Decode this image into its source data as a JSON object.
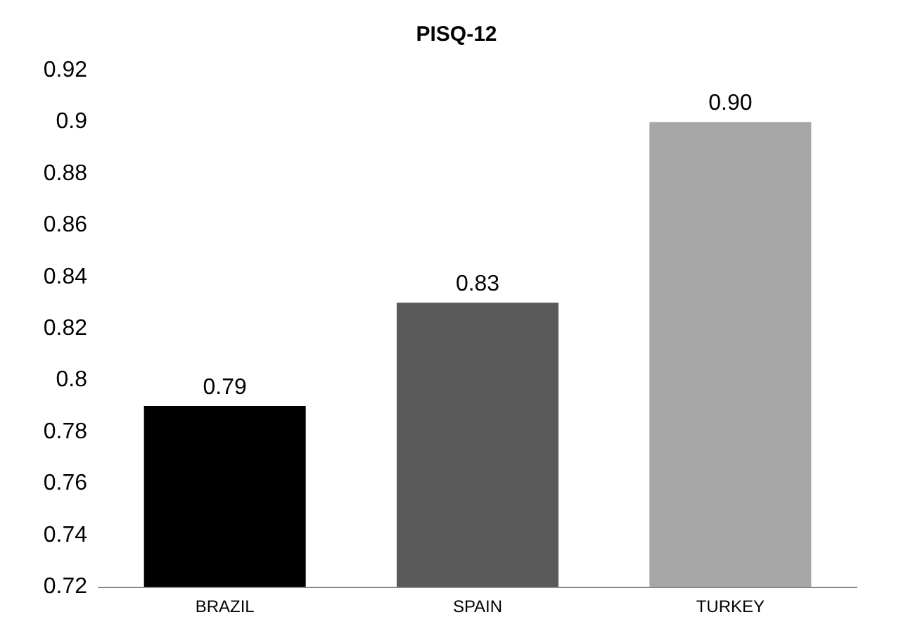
{
  "chart_data": {
    "type": "bar",
    "title": "PISQ-12",
    "categories": [
      "BRAZIL",
      "SPAIN",
      "TURKEY"
    ],
    "values": [
      0.79,
      0.83,
      0.9
    ],
    "colors": [
      "#000000",
      "#595959",
      "#a6a6a6"
    ],
    "value_labels": [
      "0.79",
      "0.83",
      "0.90"
    ],
    "ylim": [
      0.72,
      0.92
    ],
    "yticks": [
      0.72,
      0.74,
      0.76,
      0.78,
      0.8,
      0.82,
      0.84,
      0.86,
      0.88,
      0.9,
      0.92
    ],
    "grid": false
  }
}
